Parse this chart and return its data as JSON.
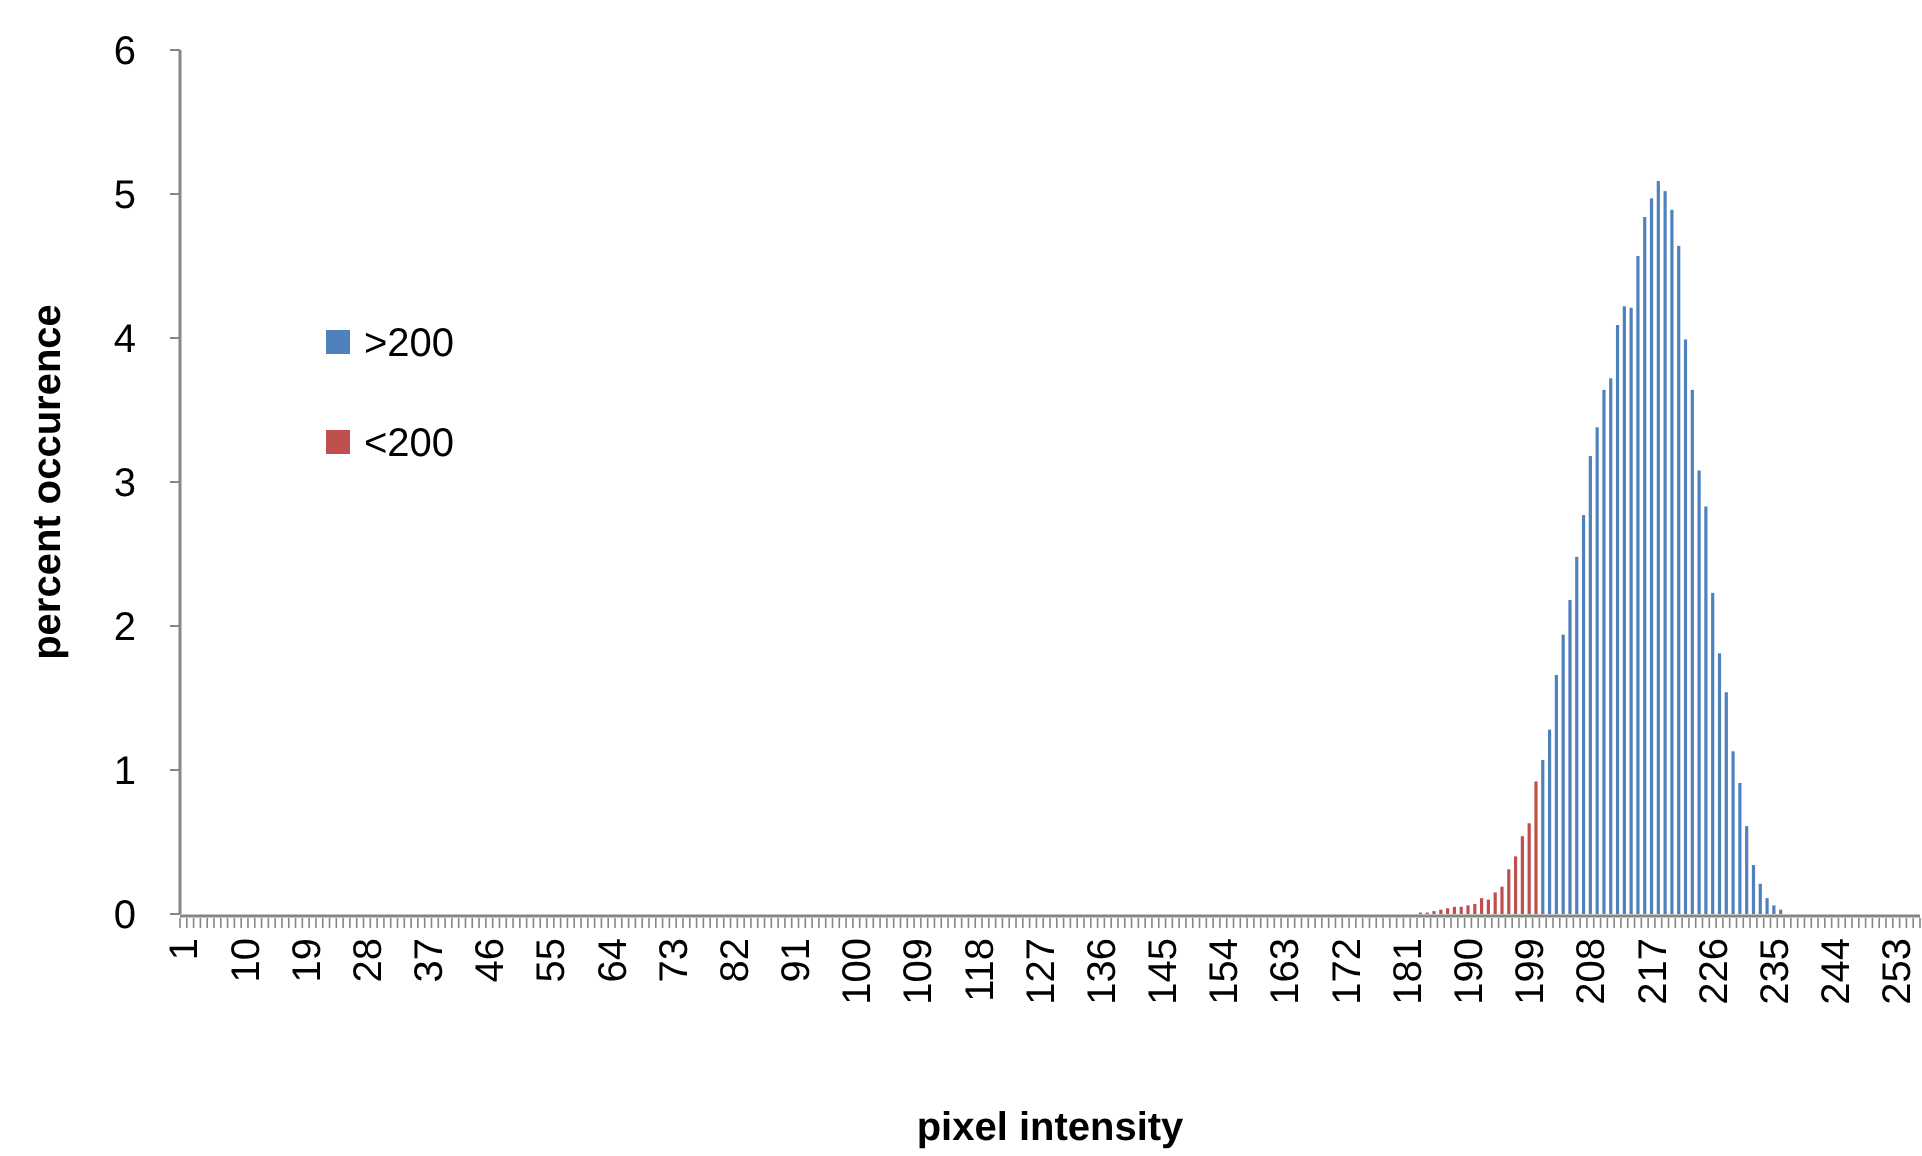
{
  "chart_data": {
    "type": "bar",
    "xlabel": "pixel intensity",
    "ylabel": "percent occurence",
    "ylim": [
      0,
      6
    ],
    "yticks": [
      0,
      1,
      2,
      3,
      4,
      5,
      6
    ],
    "grid": false,
    "legend": "left",
    "categories": [
      "1",
      null,
      null,
      null,
      null,
      null,
      null,
      null,
      null,
      "10",
      null,
      null,
      null,
      null,
      null,
      null,
      null,
      null,
      "19",
      null,
      null,
      null,
      null,
      null,
      null,
      null,
      null,
      "28",
      null,
      null,
      null,
      null,
      null,
      null,
      null,
      null,
      "37",
      null,
      null,
      null,
      null,
      null,
      null,
      null,
      null,
      "46",
      null,
      null,
      null,
      null,
      null,
      null,
      null,
      null,
      "55",
      null,
      null,
      null,
      null,
      null,
      null,
      null,
      null,
      "64",
      null,
      null,
      null,
      null,
      null,
      null,
      null,
      null,
      "73",
      null,
      null,
      null,
      null,
      null,
      null,
      null,
      null,
      "82",
      null,
      null,
      null,
      null,
      null,
      null,
      null,
      null,
      "91",
      null,
      null,
      null,
      null,
      null,
      null,
      null,
      null,
      "100",
      null,
      null,
      null,
      null,
      null,
      null,
      null,
      null,
      "109",
      null,
      null,
      null,
      null,
      null,
      null,
      null,
      null,
      "118",
      null,
      null,
      null,
      null,
      null,
      null,
      null,
      null,
      "127",
      null,
      null,
      null,
      null,
      null,
      null,
      null,
      null,
      "136",
      null,
      null,
      null,
      null,
      null,
      null,
      null,
      null,
      "145",
      null,
      null,
      null,
      null,
      null,
      null,
      null,
      null,
      "154",
      null,
      null,
      null,
      null,
      null,
      null,
      null,
      null,
      "163",
      null,
      null,
      null,
      null,
      null,
      null,
      null,
      null,
      "172",
      null,
      null,
      null,
      null,
      null,
      null,
      null,
      null,
      "181",
      null,
      null,
      null,
      null,
      null,
      null,
      null,
      null,
      "190",
      null,
      null,
      null,
      null,
      null,
      null,
      null,
      null,
      "199",
      null,
      null,
      null,
      null,
      null,
      null,
      null,
      null,
      "208",
      null,
      null,
      null,
      null,
      null,
      null,
      null,
      null,
      "217",
      null,
      null,
      null,
      null,
      null,
      null,
      null,
      null,
      "226",
      null,
      null,
      null,
      null,
      null,
      null,
      null,
      null,
      "235",
      null,
      null,
      null,
      null,
      null,
      null,
      null,
      null,
      "244",
      null,
      null,
      null,
      null,
      null,
      null,
      null,
      null,
      "253",
      null,
      null,
      null
    ],
    "series": [
      {
        "name": ">200",
        "color": "#4f81bd",
        "values": [
          null,
          null,
          null,
          null,
          null,
          null,
          null,
          null,
          null,
          null,
          null,
          null,
          null,
          null,
          null,
          null,
          null,
          null,
          null,
          null,
          null,
          null,
          null,
          null,
          null,
          null,
          null,
          null,
          null,
          null,
          null,
          null,
          null,
          null,
          null,
          null,
          null,
          null,
          null,
          null,
          null,
          null,
          null,
          null,
          null,
          null,
          null,
          null,
          null,
          null,
          null,
          null,
          null,
          null,
          null,
          null,
          null,
          null,
          null,
          null,
          null,
          null,
          null,
          null,
          null,
          null,
          null,
          null,
          null,
          null,
          null,
          null,
          null,
          null,
          null,
          null,
          null,
          null,
          null,
          null,
          null,
          null,
          null,
          null,
          null,
          null,
          null,
          null,
          null,
          null,
          null,
          null,
          null,
          null,
          null,
          null,
          null,
          null,
          null,
          null,
          null,
          null,
          null,
          null,
          null,
          null,
          null,
          null,
          null,
          null,
          null,
          null,
          null,
          null,
          null,
          null,
          null,
          null,
          null,
          null,
          null,
          null,
          null,
          null,
          null,
          null,
          null,
          null,
          null,
          null,
          null,
          null,
          null,
          null,
          null,
          null,
          null,
          null,
          null,
          null,
          null,
          null,
          null,
          null,
          null,
          null,
          null,
          null,
          null,
          null,
          null,
          null,
          null,
          null,
          null,
          null,
          null,
          null,
          null,
          null,
          null,
          null,
          null,
          null,
          null,
          null,
          null,
          null,
          null,
          null,
          null,
          null,
          null,
          null,
          null,
          null,
          null,
          null,
          null,
          null,
          null,
          null,
          null,
          null,
          null,
          null,
          null,
          null,
          null,
          null,
          null,
          null,
          null,
          null,
          null,
          null,
          null,
          null,
          null,
          null,
          1.07,
          1.28,
          1.66,
          1.94,
          2.18,
          2.48,
          2.77,
          3.18,
          3.38,
          3.64,
          3.72,
          4.09,
          4.22,
          4.21,
          4.57,
          4.84,
          4.97,
          5.09,
          5.02,
          4.89,
          4.64,
          3.99,
          3.64,
          3.08,
          2.83,
          2.23,
          1.81,
          1.54,
          1.13,
          0.91,
          0.61,
          0.34,
          0.21,
          0.11,
          0.06,
          0.03,
          null,
          null,
          null,
          null,
          null,
          null,
          null,
          null,
          null,
          null,
          null,
          null,
          null,
          null,
          null,
          null,
          null,
          null,
          null,
          null
        ]
      },
      {
        "name": "<200",
        "color": "#c0504d",
        "values": [
          null,
          null,
          null,
          null,
          null,
          null,
          null,
          null,
          null,
          null,
          null,
          null,
          null,
          null,
          null,
          null,
          null,
          null,
          null,
          null,
          null,
          null,
          null,
          null,
          null,
          null,
          null,
          null,
          null,
          null,
          null,
          null,
          null,
          null,
          null,
          null,
          null,
          null,
          null,
          null,
          null,
          null,
          null,
          null,
          null,
          null,
          null,
          null,
          null,
          null,
          null,
          null,
          null,
          null,
          null,
          null,
          null,
          null,
          null,
          null,
          null,
          null,
          null,
          null,
          null,
          null,
          null,
          null,
          null,
          null,
          null,
          null,
          null,
          null,
          null,
          null,
          null,
          null,
          null,
          null,
          null,
          null,
          null,
          null,
          null,
          null,
          null,
          null,
          null,
          null,
          null,
          null,
          null,
          null,
          null,
          null,
          null,
          null,
          null,
          null,
          null,
          null,
          null,
          null,
          null,
          null,
          null,
          null,
          null,
          null,
          null,
          null,
          null,
          null,
          null,
          null,
          null,
          null,
          null,
          null,
          null,
          null,
          null,
          null,
          null,
          null,
          null,
          null,
          null,
          null,
          null,
          null,
          null,
          null,
          null,
          null,
          null,
          null,
          null,
          null,
          null,
          null,
          null,
          null,
          null,
          null,
          null,
          null,
          null,
          null,
          null,
          null,
          null,
          null,
          null,
          null,
          null,
          null,
          null,
          null,
          null,
          null,
          null,
          null,
          null,
          null,
          null,
          null,
          null,
          null,
          null,
          null,
          null,
          null,
          null,
          null,
          null,
          null,
          null,
          null,
          null,
          null,
          0.01,
          0.01,
          0.02,
          0.03,
          0.04,
          0.05,
          0.05,
          0.06,
          0.07,
          0.11,
          0.1,
          0.15,
          0.19,
          0.31,
          0.4,
          0.54,
          0.63,
          0.92,
          null,
          null,
          null,
          null,
          null,
          null,
          null,
          null,
          null,
          null,
          null,
          null,
          null,
          null,
          null,
          null,
          null,
          null,
          null,
          null,
          null,
          null,
          null,
          null,
          null,
          null,
          null,
          null,
          null,
          null,
          null,
          null,
          null,
          null,
          null,
          null,
          null,
          null,
          null,
          null,
          null,
          null,
          null,
          null,
          null,
          null,
          null,
          null,
          null,
          null,
          null,
          null,
          null,
          null,
          null,
          null
        ]
      }
    ]
  }
}
